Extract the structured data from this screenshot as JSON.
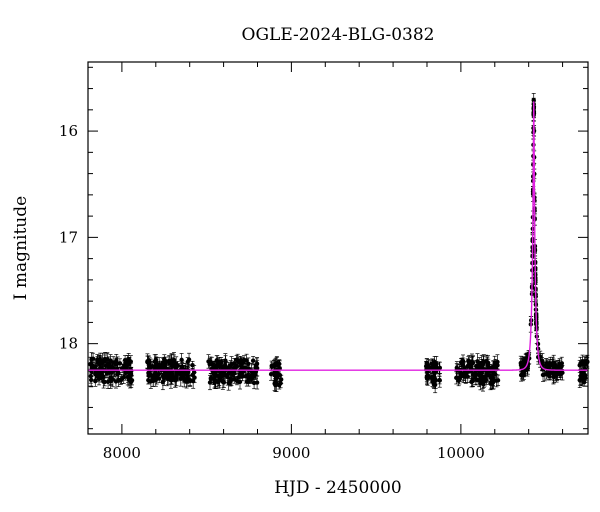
{
  "chart_data": {
    "type": "scatter",
    "title": "OGLE-2024-BLG-0382",
    "xlabel": "HJD - 2450000",
    "ylabel": "I magnitude",
    "xlim": [
      7800,
      10750
    ],
    "ylim": [
      18.85,
      15.35
    ],
    "y_inverted": true,
    "grid": false,
    "x_ticks": [
      8000,
      9000,
      10000
    ],
    "y_ticks": [
      16,
      17,
      18
    ],
    "colors": {
      "points": "#000000",
      "model": "#e020e0",
      "frame": "#000000"
    },
    "baseline_magnitude": 18.25,
    "peak": {
      "hjd": 10430,
      "magnitude": 15.72
    },
    "observing_seasons": [
      {
        "start": 7810,
        "end": 8060,
        "mag": 18.25
      },
      {
        "start": 8150,
        "end": 8430,
        "mag": 18.25
      },
      {
        "start": 8510,
        "end": 8800,
        "mag": 18.26
      },
      {
        "start": 8880,
        "end": 8940,
        "mag": 18.28
      },
      {
        "start": 9790,
        "end": 9880,
        "mag": 18.28
      },
      {
        "start": 9970,
        "end": 10220,
        "mag": 18.27
      },
      {
        "start": 10350,
        "end": 10600,
        "mag": 18.27
      },
      {
        "start": 10700,
        "end": 10750,
        "mag": 18.27
      }
    ],
    "series": [
      {
        "type": "scatter-with-errorbars",
        "color": "#000000"
      },
      {
        "type": "line",
        "color": "#e020e0"
      }
    ]
  }
}
